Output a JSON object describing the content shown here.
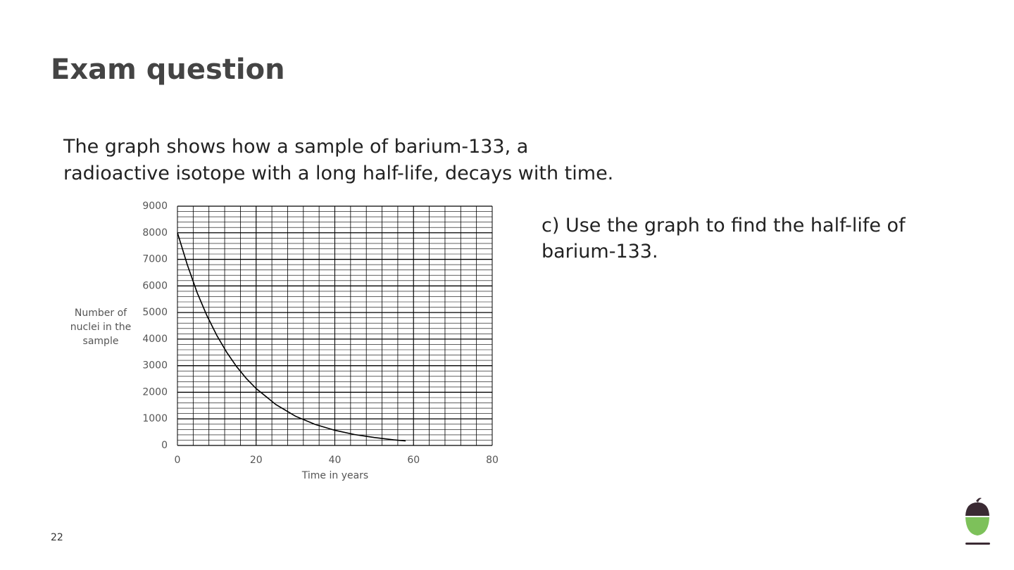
{
  "slide": {
    "title": "Exam question",
    "body_lines": [
      "The graph shows how a sample of barium-133, a",
      "radioactive isotope with a long half-life, decays with time."
    ],
    "question_lines": [
      "c) Use the graph to find the half-life of",
      "barium-133."
    ],
    "page_number": "22"
  },
  "chart_data": {
    "type": "line",
    "xlabel": "Time in years",
    "ylabel": "Number of nuclei in the sample",
    "x": [
      0,
      2.5,
      5,
      7.5,
      10,
      12.5,
      15,
      17.5,
      20,
      25,
      30,
      35,
      40,
      45,
      50,
      55,
      58
    ],
    "series": [
      {
        "color": "#000000",
        "values": [
          8000,
          6800,
          5750,
          4880,
          4140,
          3510,
          2970,
          2520,
          2140,
          1540,
          1100,
          790,
          570,
          410,
          300,
          210,
          170
        ]
      }
    ],
    "xlim": [
      0,
      80
    ],
    "ylim": [
      0,
      9000
    ],
    "xticks": [
      0,
      20,
      40,
      60,
      80
    ],
    "yticks": [
      0,
      1000,
      2000,
      3000,
      4000,
      5000,
      6000,
      7000,
      8000,
      9000
    ],
    "grid": true,
    "x_minor_step": 4,
    "y_minor_step": 200
  }
}
